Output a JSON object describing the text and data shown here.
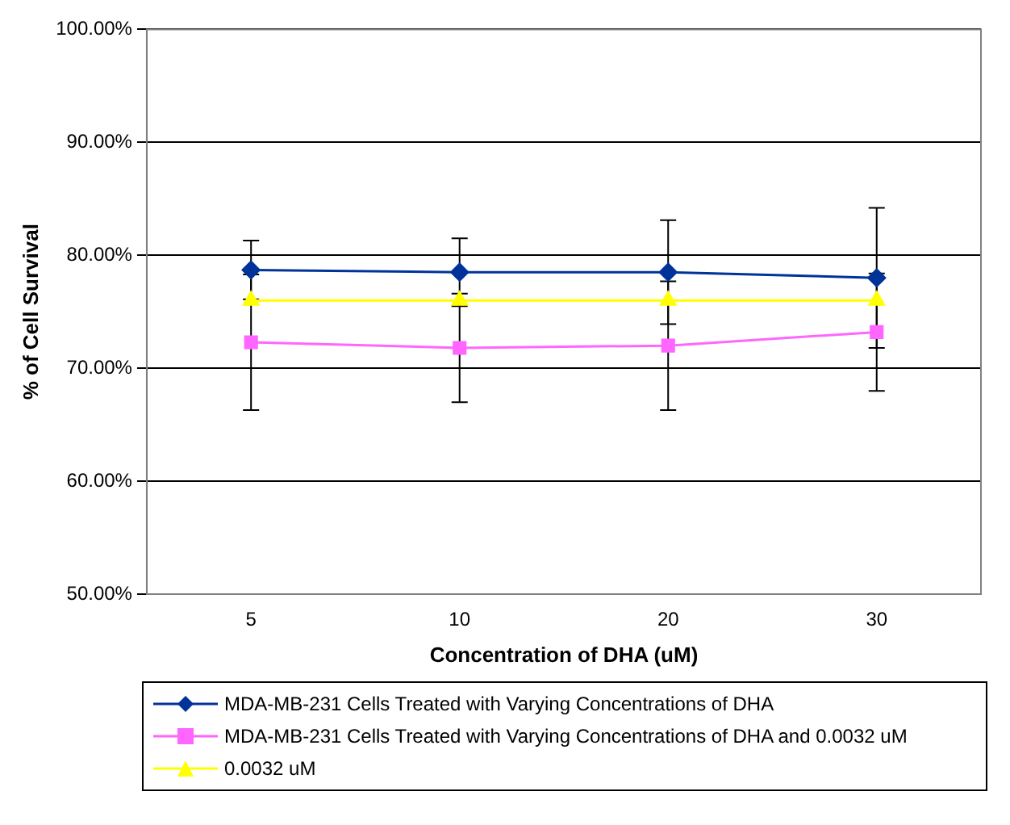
{
  "chart_data": {
    "type": "line",
    "xlabel": "Concentration of DHA (uM)",
    "ylabel": "% of Cell Survival",
    "categories": [
      "5",
      "10",
      "20",
      "30"
    ],
    "ylim": [
      50,
      100
    ],
    "yticks": [
      {
        "value": 50,
        "label": "50.00%"
      },
      {
        "value": 60,
        "label": "60.00%"
      },
      {
        "value": 70,
        "label": "70.00%"
      },
      {
        "value": 80,
        "label": "80.00%"
      },
      {
        "value": 90,
        "label": "90.00%"
      },
      {
        "value": 100,
        "label": "100.00%"
      }
    ],
    "grid": "y",
    "legend": "bottom",
    "line_style": "solid",
    "series": [
      {
        "name": "MDA-MB-231 Cells Treated with Varying Concentrations of DHA",
        "color": "#003399",
        "marker": "diamond",
        "values": [
          78.7,
          78.5,
          78.5,
          78.0
        ],
        "errors": [
          2.6,
          3.0,
          4.6,
          6.2
        ]
      },
      {
        "name": "MDA-MB-231 Cells Treated with Varying Concentrations of DHA and 0.0032 uM",
        "color": "#ff66ff",
        "marker": "square",
        "values": [
          72.3,
          71.8,
          72.0,
          73.2
        ],
        "errors": [
          6.0,
          4.8,
          5.7,
          5.2
        ]
      },
      {
        "name": "0.0032 uM",
        "color": "#ffff00",
        "marker": "triangle",
        "values": [
          76.0,
          76.0,
          76.0,
          76.0
        ]
      }
    ]
  }
}
